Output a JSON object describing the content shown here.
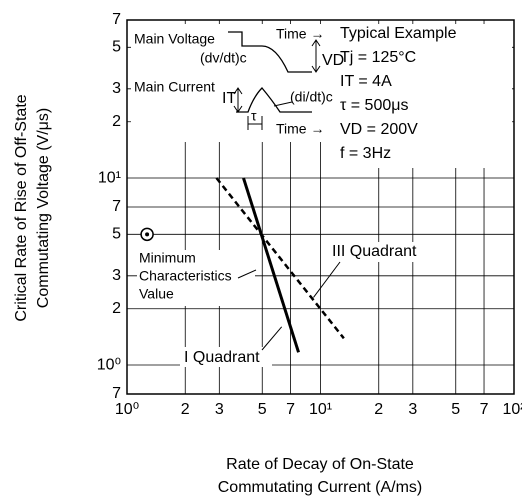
{
  "chart_data": {
    "type": "line",
    "xlabel": [
      "Rate of Decay of On-State",
      "Commutating Current  (A/ms)"
    ],
    "ylabel": [
      "Critical Rate of Rise of Off-State",
      "Commutating Voltage  (V/μs)"
    ],
    "log_x": true,
    "log_y": true,
    "grid": true,
    "xlim": [
      1,
      100
    ],
    "ylim": [
      0.7,
      70
    ],
    "xticks": [
      {
        "value": 1,
        "label": "10⁰"
      },
      2,
      3,
      5,
      7,
      {
        "value": 10,
        "label": "10¹"
      },
      {
        "value": 20,
        "label": "2"
      },
      {
        "value": 30,
        "label": "3"
      },
      {
        "value": 50,
        "label": "5"
      },
      {
        "value": 70,
        "label": "7"
      },
      {
        "value": 100,
        "label": "10²"
      }
    ],
    "yticks": [
      {
        "value": 0.7,
        "label": "7"
      },
      {
        "value": 1,
        "label": "10⁰"
      },
      2,
      3,
      5,
      7,
      {
        "value": 10,
        "label": "10¹"
      },
      {
        "value": 20,
        "label": "2"
      },
      {
        "value": 30,
        "label": "3"
      },
      {
        "value": 50,
        "label": "5"
      },
      {
        "value": 70,
        "label": "7"
      }
    ],
    "series": [
      {
        "name": "I Quadrant",
        "color": "#000000",
        "dash": false,
        "x": [
          4,
          7.7
        ],
        "values": [
          10,
          1.17
        ]
      },
      {
        "name": "III Quadrant",
        "color": "#000000",
        "dash": true,
        "x": [
          2.9,
          13.2
        ],
        "values": [
          10,
          1.39
        ]
      }
    ],
    "marker": {
      "label": [
        "Minimum",
        "Characteristics",
        "Value"
      ],
      "x": 1.27,
      "y": 5
    },
    "inset": {
      "main_voltage": "Main Voltage",
      "time_1": "Time →",
      "dvdt": "(dv/dt)c",
      "vd": "VD",
      "main_current": "Main Current",
      "it": "IT",
      "didt": "(di/dt)c",
      "tau": "τ",
      "time_2": "Time →"
    },
    "conditions": [
      "Typical Example",
      "Tj = 125°C",
      "IT = 4A",
      "τ = 500μs",
      "VD = 200V",
      "f = 3Hz"
    ]
  }
}
